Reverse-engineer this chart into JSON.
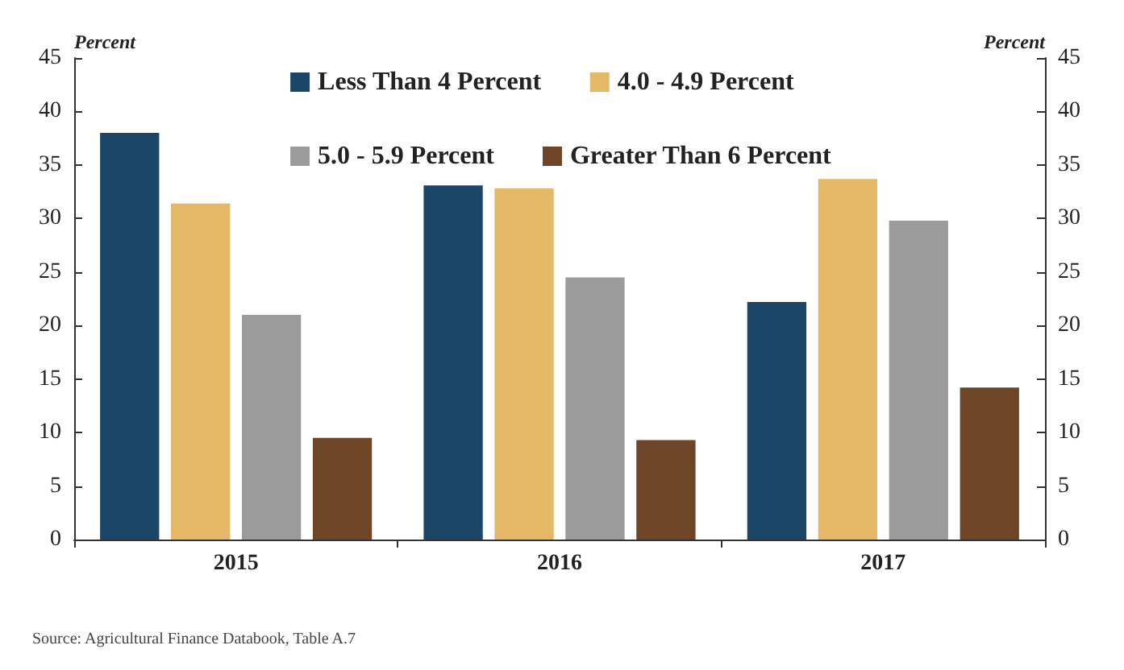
{
  "chart_data": {
    "type": "bar",
    "categories": [
      "2015",
      "2016",
      "2017"
    ],
    "series": [
      {
        "name": "Less Than 4 Percent",
        "color": "#1b4668",
        "values": [
          38,
          33.1,
          22.2
        ]
      },
      {
        "name": "4.0 - 4.9 Percent",
        "color": "#e5b867",
        "values": [
          31.4,
          32.8,
          33.7
        ]
      },
      {
        "name": "5.0 - 5.9 Percent",
        "color": "#9b9b9b",
        "values": [
          21,
          24.5,
          29.8
        ]
      },
      {
        "name": "Greater Than 6 Percent",
        "color": "#6e4526",
        "values": [
          9.5,
          9.3,
          14.2
        ]
      }
    ],
    "ylabel": "Percent",
    "y2label": "Percent",
    "ylim": [
      0,
      45
    ],
    "yticks": [
      0,
      5,
      10,
      15,
      20,
      25,
      30,
      35,
      40,
      45
    ],
    "y2lim": [
      0,
      45
    ],
    "y2ticks": [
      0,
      5,
      10,
      15,
      20,
      25,
      30,
      35,
      40,
      45
    ],
    "annotations": [
      "Source: Agricultural Finance Databook, Table A.7"
    ],
    "legend": "top",
    "grid": false
  }
}
